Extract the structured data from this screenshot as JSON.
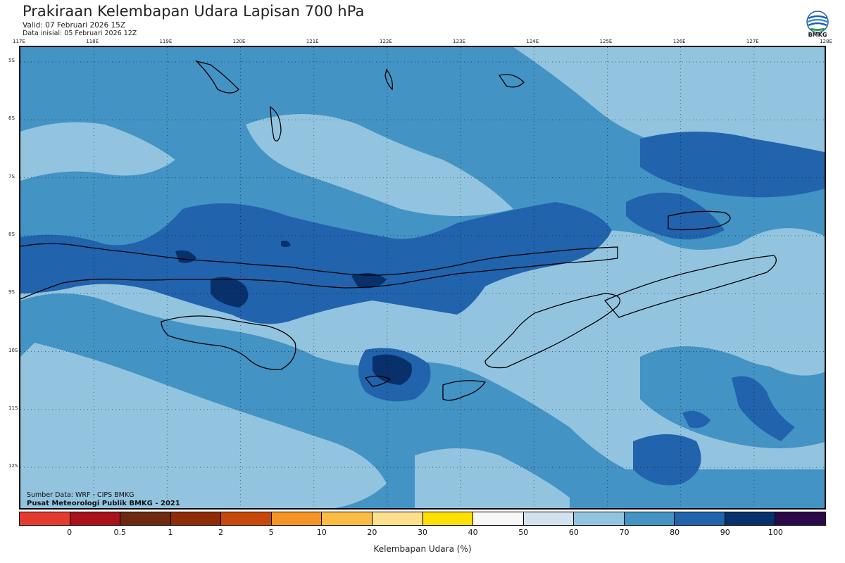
{
  "header": {
    "title": "Prakiraan Kelembapan Udara Lapisan 700 hPa",
    "valid": "Valid: 07 Februari 2026 15Z",
    "initial": "Data inisial: 05 Februari 2026 12Z"
  },
  "logo": {
    "text": "BMKG",
    "icon": "bmkg-logo-icon"
  },
  "map": {
    "lon_labels": [
      "117E",
      "118E",
      "119E",
      "120E",
      "121E",
      "122E",
      "123E",
      "124E",
      "125E",
      "126E",
      "127E",
      "128E"
    ],
    "lat_labels": [
      "5S",
      "6S",
      "7S",
      "8S",
      "9S",
      "10S",
      "11S",
      "12S"
    ]
  },
  "credits": {
    "source": "Sumber Data: WRF - CIPS BMKG",
    "org": "Pusat Meteorologi Publik BMKG - 2021"
  },
  "legend": {
    "title": "Kelembapan Udara (%)",
    "labels": [
      "0",
      "0.5",
      "1",
      "2",
      "5",
      "10",
      "20",
      "30",
      "40",
      "50",
      "60",
      "70",
      "80",
      "90",
      "100"
    ],
    "colors": [
      "#e53a2e",
      "#a8121b",
      "#6e2a10",
      "#8e2c06",
      "#c6480a",
      "#f59324",
      "#fbbc46",
      "#fde08e",
      "#fde000",
      "#f7f7f7",
      "#d2e3f0",
      "#93c4df",
      "#4393c4",
      "#2163ad",
      "#08306b",
      "#2c0a4a"
    ]
  }
}
